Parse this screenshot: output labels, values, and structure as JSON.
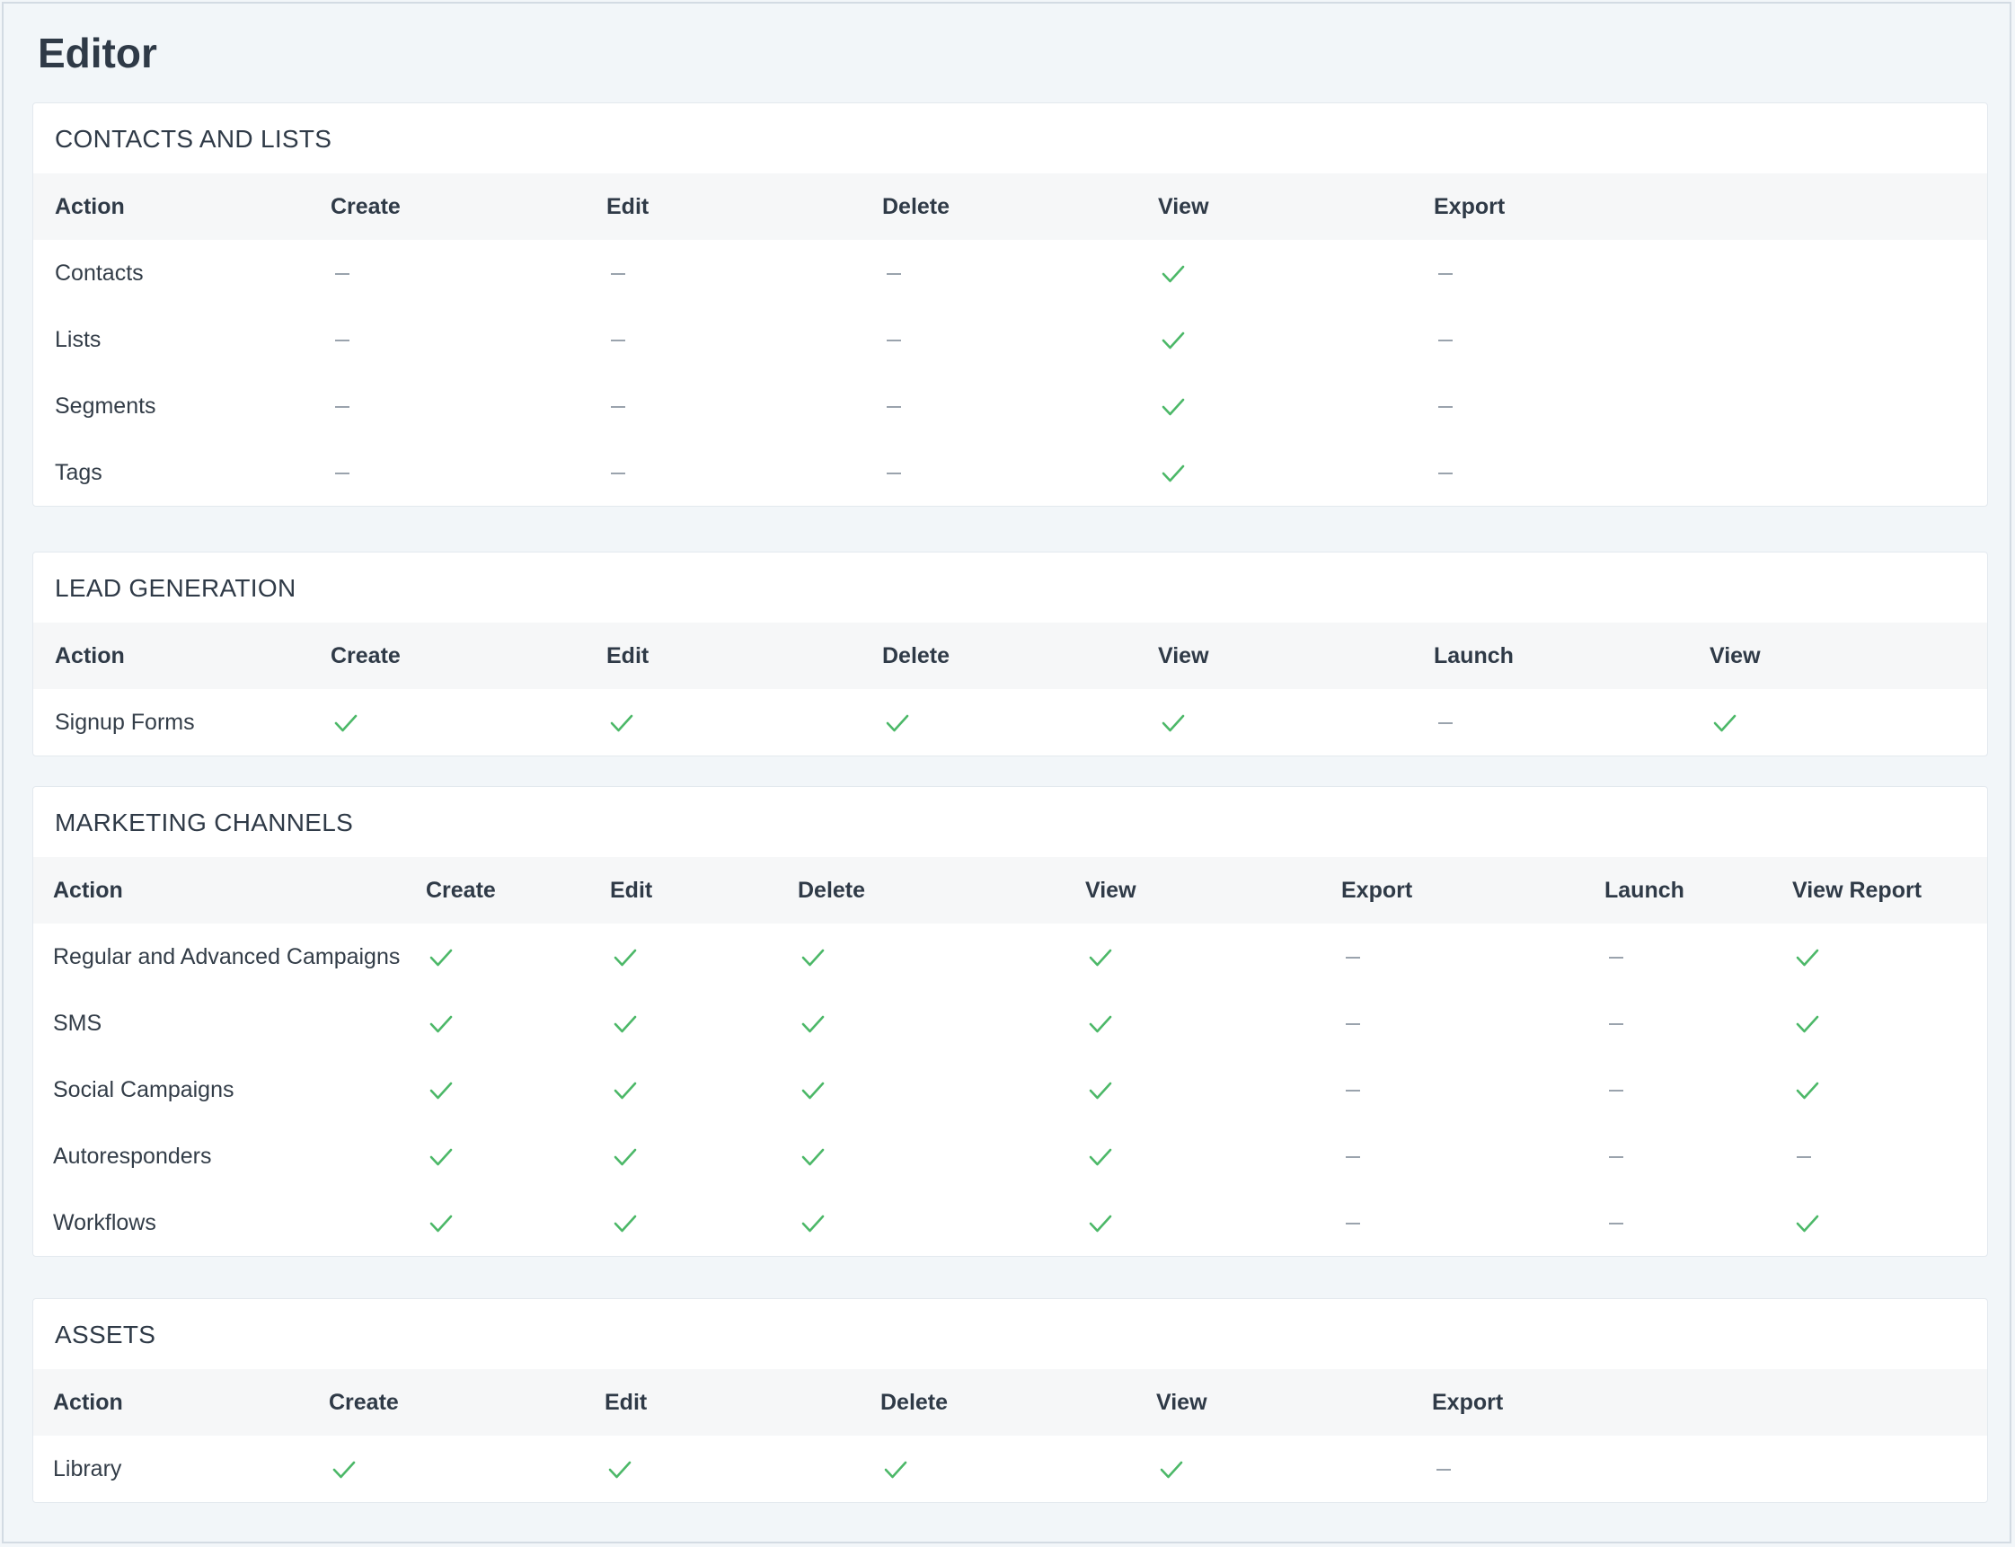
{
  "page": {
    "title": "Editor"
  },
  "colors": {
    "check": "#4cb868",
    "dash": "#9aa3ad",
    "header_bg": "#f6f7f8",
    "page_bg": "#f2f6f9"
  },
  "icons": {
    "yes": "check-icon",
    "no": "dash-icon"
  },
  "sections": [
    {
      "id": "contacts-and-lists",
      "title": "CONTACTS AND LISTS",
      "headers": [
        "Action",
        "Create",
        "Edit",
        "Delete",
        "View",
        "Export"
      ],
      "rows": [
        {
          "label": "Contacts",
          "values": [
            false,
            false,
            false,
            true,
            false
          ]
        },
        {
          "label": "Lists",
          "values": [
            false,
            false,
            false,
            true,
            false
          ]
        },
        {
          "label": "Segments",
          "values": [
            false,
            false,
            false,
            true,
            false
          ]
        },
        {
          "label": "Tags",
          "values": [
            false,
            false,
            false,
            true,
            false
          ]
        }
      ]
    },
    {
      "id": "lead-generation",
      "title": "LEAD GENERATION",
      "headers": [
        "Action",
        "Create",
        "Edit",
        "Delete",
        "View",
        "Launch",
        "View"
      ],
      "rows": [
        {
          "label": "Signup Forms",
          "values": [
            true,
            true,
            true,
            true,
            false,
            true
          ]
        }
      ]
    },
    {
      "id": "marketing-channels",
      "title": "MARKETING CHANNELS",
      "headers": [
        "Action",
        "Create",
        "Edit",
        "Delete",
        "View",
        "Export",
        "Launch",
        "View Report"
      ],
      "rows": [
        {
          "label": "Regular and Advanced Campaigns",
          "values": [
            true,
            true,
            true,
            true,
            false,
            false,
            true
          ]
        },
        {
          "label": "SMS",
          "values": [
            true,
            true,
            true,
            true,
            false,
            false,
            true
          ]
        },
        {
          "label": "Social Campaigns",
          "values": [
            true,
            true,
            true,
            true,
            false,
            false,
            true
          ]
        },
        {
          "label": "Autoresponders",
          "values": [
            true,
            true,
            true,
            true,
            false,
            false,
            false
          ]
        },
        {
          "label": "Workflows",
          "values": [
            true,
            true,
            true,
            true,
            false,
            false,
            true
          ]
        }
      ]
    },
    {
      "id": "assets",
      "title": "ASSETS",
      "headers": [
        "Action",
        "Create",
        "Edit",
        "Delete",
        "View",
        "Export"
      ],
      "rows": [
        {
          "label": "Library",
          "values": [
            true,
            true,
            true,
            true,
            false
          ]
        }
      ]
    }
  ]
}
